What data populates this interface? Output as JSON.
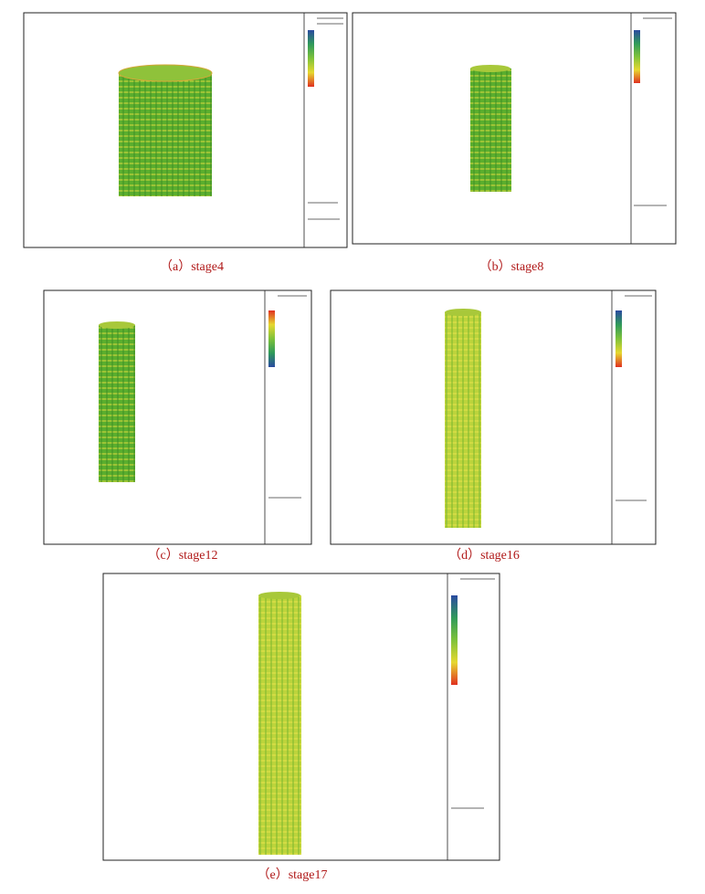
{
  "figure": {
    "panels": [
      {
        "caption": "（a）stage4"
      },
      {
        "caption": "（b）stage8"
      },
      {
        "caption": "（c）stage12"
      },
      {
        "caption": "（d）stage16"
      },
      {
        "caption": "（e）stage17"
      }
    ]
  }
}
